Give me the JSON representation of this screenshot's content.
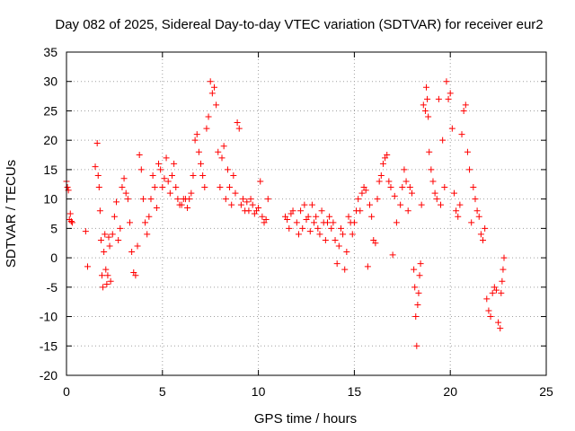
{
  "chart_data": {
    "type": "scatter",
    "title": "Day 082 of 2025, Sidereal Day-to-day VTEC variation (SDTVAR) for receiver eur2",
    "xlabel": "GPS time / hours",
    "ylabel": "SDTVAR / TECUs",
    "xlim": [
      0,
      25
    ],
    "ylim": [
      -20,
      35
    ],
    "xticks": [
      "0",
      "5",
      "10",
      "15",
      "20",
      "25"
    ],
    "yticks": [
      "35",
      "30",
      "25",
      "20",
      "15",
      "10",
      "5",
      "0",
      "-5",
      "-10",
      "-15",
      "-20"
    ],
    "grid": true,
    "marker": "plus",
    "color": "#ff0000",
    "series": [
      {
        "name": "SDTVAR",
        "x": [
          0.0,
          0.05,
          0.1,
          0.15,
          0.2,
          0.25,
          0.3,
          1.0,
          1.1,
          1.5,
          1.6,
          1.65,
          1.7,
          1.75,
          1.8,
          1.85,
          1.9,
          1.95,
          2.0,
          2.05,
          2.1,
          2.15,
          2.2,
          2.25,
          2.3,
          2.4,
          2.5,
          2.6,
          2.7,
          2.8,
          2.9,
          3.0,
          3.1,
          3.2,
          3.3,
          3.4,
          3.5,
          3.6,
          3.7,
          3.8,
          3.9,
          4.0,
          4.1,
          4.2,
          4.3,
          4.4,
          4.5,
          4.6,
          4.7,
          4.8,
          4.9,
          5.0,
          5.1,
          5.2,
          5.3,
          5.4,
          5.5,
          5.6,
          5.7,
          5.8,
          5.9,
          6.0,
          6.1,
          6.2,
          6.3,
          6.4,
          6.5,
          6.6,
          6.7,
          6.8,
          6.9,
          7.0,
          7.1,
          7.2,
          7.3,
          7.4,
          7.5,
          7.6,
          7.7,
          7.8,
          7.9,
          8.0,
          8.1,
          8.2,
          8.3,
          8.4,
          8.5,
          8.6,
          8.7,
          8.8,
          8.9,
          9.0,
          9.1,
          9.2,
          9.3,
          9.4,
          9.5,
          9.6,
          9.7,
          9.8,
          9.9,
          10.0,
          10.1,
          10.2,
          10.3,
          10.4,
          10.5,
          11.4,
          11.5,
          11.6,
          11.7,
          11.8,
          12.0,
          12.1,
          12.2,
          12.3,
          12.4,
          12.5,
          12.6,
          12.7,
          12.8,
          12.9,
          13.0,
          13.1,
          13.2,
          13.3,
          13.4,
          13.5,
          13.6,
          13.7,
          13.8,
          13.9,
          14.0,
          14.1,
          14.2,
          14.3,
          14.4,
          14.5,
          14.6,
          14.7,
          14.8,
          14.9,
          15.0,
          15.1,
          15.2,
          15.3,
          15.4,
          15.5,
          15.6,
          15.7,
          15.8,
          15.9,
          16.0,
          16.1,
          16.2,
          16.3,
          16.4,
          16.5,
          16.6,
          16.7,
          16.8,
          16.9,
          17.0,
          17.1,
          17.2,
          17.4,
          17.5,
          17.6,
          17.7,
          17.8,
          17.9,
          18.0,
          18.1,
          18.15,
          18.2,
          18.25,
          18.3,
          18.35,
          18.4,
          18.45,
          18.5,
          18.6,
          18.7,
          18.75,
          18.8,
          18.85,
          18.9,
          19.0,
          19.1,
          19.2,
          19.3,
          19.4,
          19.5,
          19.6,
          19.7,
          19.8,
          19.9,
          20.0,
          20.1,
          20.2,
          20.3,
          20.4,
          20.5,
          20.6,
          20.7,
          20.8,
          20.9,
          21.0,
          21.1,
          21.2,
          21.3,
          21.4,
          21.5,
          21.6,
          21.7,
          21.8,
          21.9,
          22.0,
          22.1,
          22.2,
          22.3,
          22.4,
          22.5,
          22.6,
          22.65,
          22.7,
          22.75,
          22.8
        ],
        "y": [
          13.0,
          12.0,
          11.5,
          6.5,
          7.5,
          6.2,
          6.0,
          4.5,
          -1.5,
          15.5,
          19.5,
          14.0,
          12.0,
          8.0,
          3.0,
          -3.0,
          -5.0,
          1.0,
          4.0,
          -2.0,
          -4.5,
          -3.0,
          3.5,
          2.0,
          -4.0,
          4.0,
          7.0,
          9.5,
          3.0,
          5.0,
          12.0,
          13.5,
          11.0,
          10.0,
          6.0,
          1.0,
          -2.5,
          -3.0,
          2.0,
          17.5,
          15.0,
          10.0,
          6.0,
          4.0,
          7.0,
          10.0,
          14.0,
          12.0,
          8.5,
          16.0,
          15.0,
          12.0,
          13.5,
          17.0,
          13.0,
          11.0,
          14.0,
          16.0,
          12.0,
          10.0,
          9.0,
          9.0,
          10.0,
          10.0,
          8.5,
          10.0,
          11.0,
          14.0,
          20.0,
          21.0,
          18.0,
          16.0,
          14.0,
          12.0,
          22.0,
          24.0,
          30.0,
          28.0,
          29.0,
          26.0,
          18.0,
          12.0,
          17.0,
          19.0,
          10.0,
          15.0,
          12.0,
          9.0,
          14.0,
          11.0,
          23.0,
          22.0,
          9.0,
          10.0,
          8.0,
          9.5,
          8.0,
          10.0,
          9.0,
          7.5,
          8.0,
          8.5,
          13.0,
          7.0,
          6.0,
          6.5,
          10.0,
          7.0,
          6.5,
          5.0,
          7.5,
          8.0,
          6.0,
          4.0,
          8.0,
          5.0,
          9.0,
          6.5,
          7.0,
          4.5,
          9.0,
          6.0,
          7.0,
          5.0,
          4.0,
          8.0,
          6.0,
          3.0,
          6.0,
          7.0,
          5.0,
          6.0,
          3.0,
          -1.0,
          2.0,
          5.0,
          4.0,
          -2.0,
          1.0,
          7.0,
          6.0,
          4.0,
          6.0,
          8.0,
          10.0,
          8.0,
          11.0,
          12.0,
          11.5,
          -1.5,
          9.0,
          7.0,
          3.0,
          2.5,
          10.0,
          13.0,
          14.0,
          16.0,
          17.0,
          17.5,
          13.0,
          12.0,
          0.5,
          10.5,
          6.0,
          9.0,
          12.0,
          15.0,
          13.0,
          8.0,
          12.0,
          11.0,
          -2.0,
          -5.0,
          -10.0,
          -15.0,
          -8.0,
          -6.0,
          -3.0,
          -1.0,
          9.0,
          26.0,
          25.0,
          29.0,
          27.0,
          24.0,
          18.0,
          15.0,
          13.0,
          11.0,
          10.0,
          27.0,
          9.0,
          20.0,
          12.0,
          30.0,
          27.0,
          28.0,
          22.0,
          11.0,
          8.0,
          7.0,
          9.0,
          21.0,
          25.0,
          26.0,
          18.0,
          15.0,
          6.0,
          12.0,
          10.0,
          8.0,
          7.0,
          4.0,
          3.0,
          5.0,
          -7.0,
          -9.0,
          -10.0,
          -6.0,
          -5.0,
          -5.5,
          -11.0,
          -12.0,
          -6.0,
          -4.0,
          -2.0,
          0.0
        ]
      }
    ]
  }
}
